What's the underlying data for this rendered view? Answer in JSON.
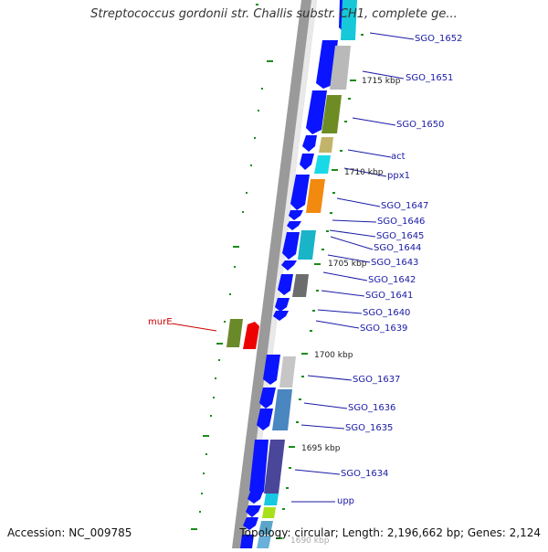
{
  "title": "Streptococcus gordonii str. Challis substr. CH1, complete ge...",
  "accession": "Accession: NC_009785",
  "summary": "Topology: circular; Length: 2,196,662 bp; Genes: 2,124",
  "colors": {
    "forward": "#0a14ff",
    "backbone": "#888888",
    "label": "#1a1aa6",
    "highlight": "#cc0000",
    "tick": "#1a8c1a"
  },
  "scale_labels": [
    "1715 kbp",
    "1710 kbp",
    "1705 kbp",
    "1700 kbp",
    "1695 kbp",
    "1690 kbp"
  ],
  "gene_labels": [
    "SGO_1652",
    "SGO_1651",
    "SGO_1650",
    "act",
    "ppx1",
    "SGO_1647",
    "SGO_1646",
    "SGO_1645",
    "SGO_1644",
    "SGO_1643",
    "SGO_1642",
    "SGO_1641",
    "SGO_1640",
    "SGO_1639",
    "SGO_1637",
    "SGO_1636",
    "SGO_1635",
    "SGO_1634",
    "upp",
    "murE"
  ]
}
